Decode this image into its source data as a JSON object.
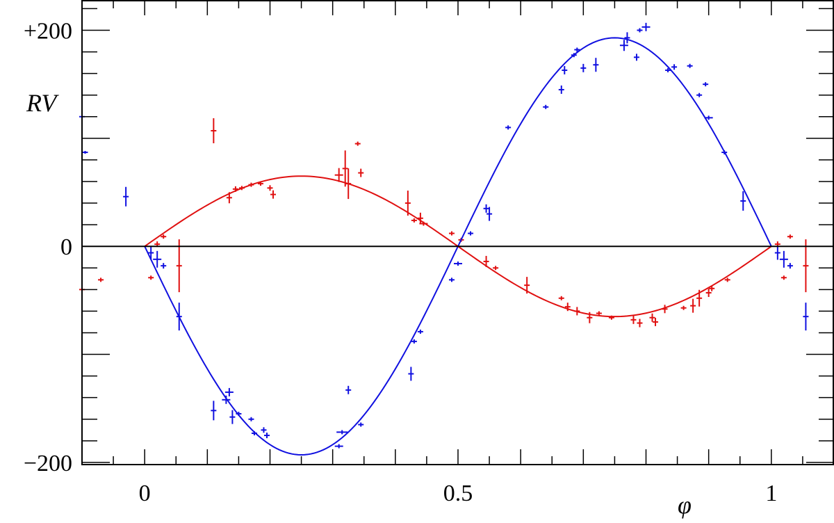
{
  "chart_data": {
    "type": "scatter",
    "xlabel": "φ",
    "ylabel": "RV",
    "xlim": [
      -0.1,
      1.1
    ],
    "ylim": [
      -202,
      228
    ],
    "x_ticks": [
      {
        "value": 0,
        "label": "0"
      },
      {
        "value": 0.5,
        "label": "0.5"
      },
      {
        "value": 1,
        "label": "1"
      }
    ],
    "y_ticks": [
      {
        "value": 200,
        "label": "+200"
      },
      {
        "value": 0,
        "label": "0"
      },
      {
        "value": -200,
        "label": "−200"
      }
    ],
    "grid": false,
    "zero_line": true,
    "colors": {
      "primary": "#1010e0",
      "secondary": "#e01010",
      "axis": "#000000"
    },
    "series": [
      {
        "color": "#1010e0",
        "fit": {
          "type": "sinusoid",
          "amplitude": 193,
          "phase_of_max": 0.75
        },
        "points": [
          [
            -0.1,
            120,
            4,
            3
          ],
          [
            -0.095,
            87,
            4,
            2
          ],
          [
            -0.03,
            46,
            4,
            14
          ],
          [
            0.01,
            -6,
            4,
            10
          ],
          [
            0.02,
            -12,
            6,
            12
          ],
          [
            0.03,
            -18,
            4,
            4
          ],
          [
            0.055,
            -65,
            4,
            20
          ],
          [
            0.11,
            -152,
            4,
            14
          ],
          [
            0.13,
            -142,
            6,
            6
          ],
          [
            0.135,
            -135,
            6,
            6
          ],
          [
            0.14,
            -158,
            4,
            10
          ],
          [
            0.15,
            -155,
            4,
            3
          ],
          [
            0.17,
            -160,
            4,
            3
          ],
          [
            0.175,
            -173,
            4,
            3
          ],
          [
            0.19,
            -170,
            4,
            4
          ],
          [
            0.195,
            -175,
            4,
            4
          ],
          [
            0.31,
            -185,
            6,
            3
          ],
          [
            0.315,
            -172,
            8,
            3
          ],
          [
            0.325,
            -133,
            4,
            6
          ],
          [
            0.345,
            -165,
            4,
            3
          ],
          [
            0.425,
            -118,
            4,
            10
          ],
          [
            0.43,
            -88,
            4,
            3
          ],
          [
            0.44,
            -79,
            4,
            3
          ],
          [
            0.49,
            -31,
            4,
            3
          ],
          [
            0.5,
            -16,
            6,
            3
          ],
          [
            0.52,
            12,
            4,
            3
          ],
          [
            0.545,
            35,
            4,
            6
          ],
          [
            0.55,
            30,
            4,
            10
          ],
          [
            0.58,
            110,
            4,
            3
          ],
          [
            0.64,
            129,
            4,
            3
          ],
          [
            0.665,
            145,
            4,
            6
          ],
          [
            0.67,
            163,
            4,
            6
          ],
          [
            0.685,
            177,
            4,
            3
          ],
          [
            0.69,
            182,
            4,
            3
          ],
          [
            0.7,
            165,
            4,
            6
          ],
          [
            0.72,
            168,
            4,
            10
          ],
          [
            0.765,
            186,
            6,
            8
          ],
          [
            0.77,
            193,
            4,
            8
          ],
          [
            0.785,
            175,
            4,
            5
          ],
          [
            0.79,
            200,
            4,
            3
          ],
          [
            0.8,
            203,
            6,
            6
          ],
          [
            0.835,
            163,
            4,
            3
          ],
          [
            0.845,
            166,
            4,
            4
          ],
          [
            0.87,
            167,
            4,
            3
          ],
          [
            0.885,
            140,
            4,
            3
          ],
          [
            0.895,
            150,
            4,
            3
          ],
          [
            0.9,
            119,
            6,
            3
          ],
          [
            0.925,
            87,
            4,
            3
          ],
          [
            0.955,
            42,
            4,
            14
          ],
          [
            1.01,
            -6,
            4,
            10
          ],
          [
            1.02,
            -12,
            6,
            12
          ],
          [
            1.03,
            -18,
            4,
            4
          ],
          [
            1.055,
            -65,
            4,
            20
          ]
        ]
      },
      {
        "color": "#e01010",
        "fit": {
          "type": "sinusoid",
          "amplitude": 65,
          "phase_of_max": 0.25
        },
        "points": [
          [
            -0.1,
            -40,
            4,
            6
          ],
          [
            -0.07,
            -31,
            4,
            3
          ],
          [
            0.01,
            -29,
            4,
            3
          ],
          [
            0.02,
            2,
            4,
            4
          ],
          [
            0.03,
            9,
            4,
            3
          ],
          [
            0.055,
            -18,
            4,
            38
          ],
          [
            0.11,
            107,
            4,
            18
          ],
          [
            0.135,
            45,
            4,
            8
          ],
          [
            0.145,
            53,
            4,
            4
          ],
          [
            0.155,
            54,
            4,
            3
          ],
          [
            0.17,
            57,
            4,
            3
          ],
          [
            0.185,
            58,
            4,
            3
          ],
          [
            0.2,
            54,
            4,
            4
          ],
          [
            0.205,
            48,
            4,
            6
          ],
          [
            0.31,
            66,
            6,
            10
          ],
          [
            0.32,
            72,
            4,
            26
          ],
          [
            0.325,
            58,
            4,
            22
          ],
          [
            0.34,
            95,
            4,
            3
          ],
          [
            0.345,
            68,
            4,
            6
          ],
          [
            0.42,
            40,
            4,
            18
          ],
          [
            0.43,
            24,
            4,
            3
          ],
          [
            0.44,
            26,
            4,
            8
          ],
          [
            0.445,
            21,
            6,
            3
          ],
          [
            0.49,
            12,
            4,
            3
          ],
          [
            0.505,
            6,
            4,
            3
          ],
          [
            0.545,
            -14,
            4,
            8
          ],
          [
            0.56,
            -20,
            4,
            3
          ],
          [
            0.61,
            -36,
            4,
            12
          ],
          [
            0.665,
            -48,
            4,
            3
          ],
          [
            0.675,
            -56,
            4,
            6
          ],
          [
            0.69,
            -60,
            4,
            6
          ],
          [
            0.71,
            -66,
            4,
            8
          ],
          [
            0.725,
            -62,
            4,
            3
          ],
          [
            0.745,
            -66,
            4,
            3
          ],
          [
            0.78,
            -68,
            4,
            6
          ],
          [
            0.79,
            -71,
            4,
            6
          ],
          [
            0.81,
            -66,
            4,
            6
          ],
          [
            0.815,
            -70,
            4,
            6
          ],
          [
            0.83,
            -58,
            4,
            6
          ],
          [
            0.86,
            -57,
            4,
            3
          ],
          [
            0.875,
            -55,
            4,
            10
          ],
          [
            0.885,
            -48,
            4,
            12
          ],
          [
            0.9,
            -43,
            4,
            6
          ],
          [
            0.905,
            -39,
            4,
            4
          ],
          [
            0.93,
            -31,
            4,
            3
          ],
          [
            1.01,
            2,
            4,
            4
          ],
          [
            1.02,
            -29,
            4,
            3
          ],
          [
            1.03,
            9,
            4,
            3
          ],
          [
            1.055,
            -18,
            4,
            38
          ]
        ]
      }
    ]
  }
}
